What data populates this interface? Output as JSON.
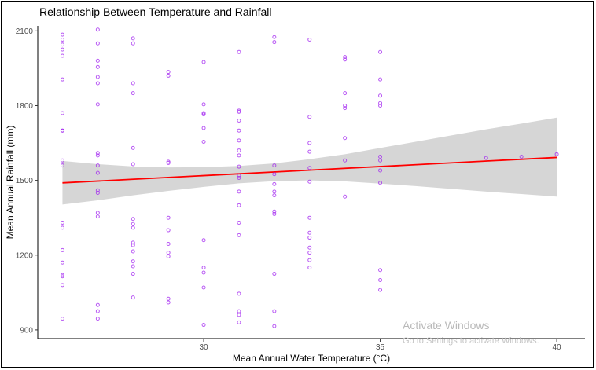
{
  "chart_data": {
    "type": "scatter",
    "title": "Relationship Between Temperature and Rainfall",
    "xlabel": "Mean Annual Water Temperature (°C)",
    "ylabel": "Mean Annual Rainfall (mm)",
    "xlim": [
      25.3,
      40.8
    ],
    "ylim": [
      865,
      2120
    ],
    "x_ticks": [
      30,
      35,
      40
    ],
    "y_ticks": [
      900,
      1200,
      1500,
      1800,
      2100
    ],
    "x_tick_labels": [
      "30",
      "35",
      "40"
    ],
    "y_tick_labels": [
      "900",
      "1200",
      "1500",
      "1800",
      "2100"
    ],
    "grid": false,
    "legend": "none",
    "point_color": "#a020f0",
    "fit_line_color": "#ff0000",
    "ribbon_color": "#d4d4d4",
    "fit_line": {
      "x": [
        26,
        40
      ],
      "y": [
        1490,
        1592
      ]
    },
    "confidence_band": {
      "x": [
        26,
        27,
        28,
        29,
        30,
        31,
        32,
        33,
        34,
        35,
        36,
        37,
        38,
        39,
        40
      ],
      "upper": [
        1578,
        1565,
        1556,
        1552,
        1553,
        1558,
        1568,
        1585,
        1605,
        1630,
        1655,
        1680,
        1705,
        1728,
        1752
      ],
      "lower": [
        1403,
        1420,
        1440,
        1458,
        1474,
        1488,
        1497,
        1500,
        1496,
        1487,
        1477,
        1466,
        1455,
        1445,
        1435
      ]
    },
    "points": {
      "x": [
        26,
        26,
        26,
        26,
        26,
        26,
        26,
        26,
        26,
        26,
        26,
        26,
        26,
        26,
        26,
        26,
        26,
        26,
        26,
        27,
        27,
        27,
        27,
        27,
        27,
        27,
        27,
        27,
        27,
        27,
        27,
        27,
        27,
        27,
        27,
        27,
        27,
        28,
        28,
        28,
        28,
        28,
        28,
        28,
        28,
        28,
        28,
        28,
        28,
        28,
        28,
        28,
        28,
        29,
        29,
        29,
        29,
        29,
        29,
        29,
        29,
        29,
        29,
        29,
        30,
        30,
        30,
        30,
        30,
        30,
        30,
        30,
        30,
        30,
        30,
        31,
        31,
        31,
        31,
        31,
        31,
        31,
        31,
        31,
        31,
        31,
        31,
        31,
        31,
        31,
        31,
        31,
        31,
        31,
        32,
        32,
        32,
        32,
        32,
        32,
        32,
        32,
        32,
        32,
        32,
        32,
        33,
        33,
        33,
        33,
        33,
        33,
        33,
        33,
        33,
        33,
        33,
        33,
        33,
        34,
        34,
        34,
        34,
        34,
        34,
        34,
        34,
        35,
        35,
        35,
        35,
        35,
        35,
        35,
        35,
        35,
        35,
        35,
        35,
        38,
        39,
        40
      ],
      "y": [
        2085,
        2065,
        2045,
        2025,
        2000,
        1905,
        1770,
        1700,
        1580,
        1560,
        1330,
        1310,
        1220,
        1170,
        1120,
        1115,
        1080,
        945,
        1700,
        2105,
        2050,
        1980,
        1955,
        1915,
        1890,
        1805,
        1610,
        1600,
        1530,
        1460,
        1450,
        1370,
        1355,
        1000,
        975,
        945,
        1560,
        2070,
        2050,
        1890,
        1850,
        1630,
        1345,
        1325,
        1310,
        1250,
        1240,
        1215,
        1175,
        1155,
        1125,
        1030,
        1565,
        1935,
        1920,
        1575,
        1350,
        1300,
        1245,
        1210,
        1195,
        1025,
        1010,
        1570,
        1975,
        1805,
        1765,
        1710,
        1655,
        1260,
        1150,
        1130,
        1070,
        920,
        1770,
        2015,
        1780,
        1775,
        1740,
        1700,
        1660,
        1620,
        1600,
        1555,
        1510,
        1455,
        1400,
        1330,
        1280,
        1045,
        975,
        960,
        930,
        1520,
        2075,
        2055,
        1560,
        1485,
        1455,
        1375,
        1365,
        1125,
        975,
        915,
        1440,
        1525,
        2065,
        1755,
        1650,
        1615,
        1550,
        1495,
        1350,
        1290,
        1270,
        1230,
        1210,
        1180,
        1150,
        1995,
        1985,
        1850,
        1800,
        1790,
        1670,
        1580,
        1435,
        2015,
        1905,
        1840,
        1810,
        1800,
        1595,
        1580,
        1490,
        1140,
        1100,
        1060,
        1540,
        1590,
        1595,
        1605
      ]
    }
  },
  "watermark": {
    "line1": "Activate Windows",
    "line2": "Go to Settings to activate Windows."
  }
}
